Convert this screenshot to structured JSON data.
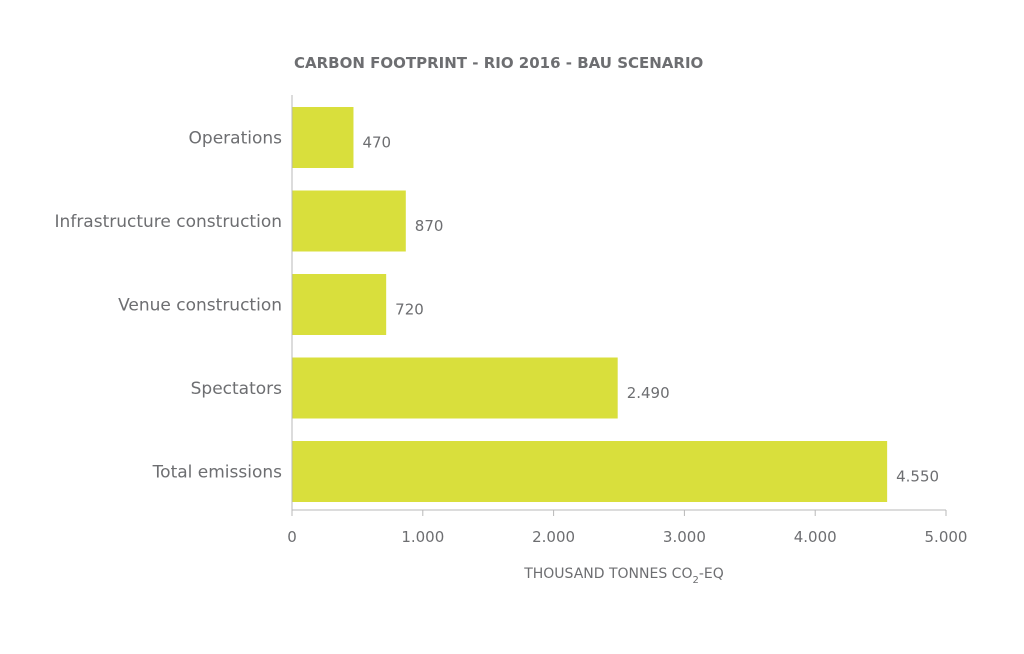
{
  "chart_data": {
    "type": "bar",
    "orientation": "horizontal",
    "title": "CARBON FOOTPRINT - RIO 2016 - BAU SCENARIO",
    "categories": [
      "Operations",
      "Infrastructure construction",
      "Venue construction",
      "Spectators",
      "Total emissions"
    ],
    "values": [
      470,
      870,
      720,
      2490,
      4550
    ],
    "value_labels": [
      "470",
      "870",
      "720",
      "2.490",
      "4.550"
    ],
    "xlabel": {
      "main": "THOUSAND TONNES CO",
      "sub": "2",
      "suffix": "-EQ"
    },
    "ylabel": "",
    "xlim": [
      0,
      5000
    ],
    "ticks": [
      0,
      1000,
      2000,
      3000,
      4000,
      5000
    ],
    "tick_labels": [
      "0",
      "1.000",
      "2.000",
      "3.000",
      "4.000",
      "5.000"
    ],
    "grid": false,
    "legend": "none",
    "bar_color": "#d9df3c",
    "text_color": "#6d6e71",
    "axis_color": "#b8b8b8"
  }
}
